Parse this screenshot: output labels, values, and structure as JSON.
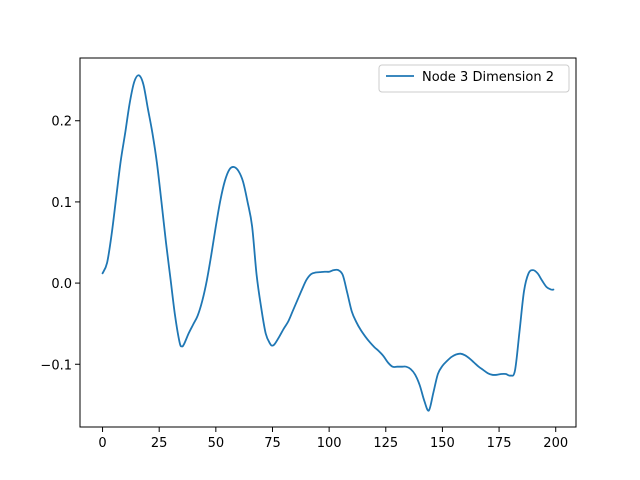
{
  "chart_data": {
    "type": "line",
    "title": "",
    "xlabel": "",
    "ylabel": "",
    "xlim": [
      -9.95,
      208.95
    ],
    "ylim": [
      -0.1773,
      0.2773
    ],
    "xticks": [
      0,
      25,
      50,
      75,
      100,
      125,
      150,
      175,
      200
    ],
    "xtick_labels": [
      "0",
      "25",
      "50",
      "75",
      "100",
      "125",
      "150",
      "175",
      "200"
    ],
    "yticks": [
      -0.1,
      0.0,
      0.1,
      0.2
    ],
    "ytick_labels": [
      "−0.1",
      "0.0",
      "0.1",
      "0.2"
    ],
    "grid": false,
    "legend_position": "top-right",
    "series": [
      {
        "name": "Node 3 Dimension 2",
        "color": "#1f77b4",
        "x": [
          0,
          2,
          4,
          6,
          8,
          10,
          12,
          14,
          16,
          18,
          20,
          22,
          24,
          26,
          28,
          30,
          32,
          34,
          35,
          36,
          38,
          40,
          42,
          44,
          46,
          48,
          50,
          52,
          54,
          56,
          58,
          60,
          62,
          64,
          66,
          68,
          70,
          72,
          74,
          75,
          76,
          78,
          80,
          82,
          84,
          86,
          88,
          90,
          92,
          94,
          96,
          98,
          100,
          102,
          104,
          106,
          108,
          110,
          112,
          114,
          116,
          118,
          120,
          122,
          124,
          126,
          128,
          130,
          132,
          134,
          136,
          138,
          140,
          142,
          144,
          146,
          148,
          150,
          152,
          154,
          156,
          158,
          160,
          162,
          164,
          166,
          168,
          170,
          172,
          174,
          176,
          178,
          180,
          182,
          184,
          186,
          188,
          190,
          192,
          194,
          196,
          198,
          199
        ],
        "y": [
          0.012,
          0.025,
          0.06,
          0.105,
          0.15,
          0.185,
          0.222,
          0.248,
          0.256,
          0.245,
          0.215,
          0.185,
          0.148,
          0.1,
          0.05,
          0.005,
          -0.04,
          -0.073,
          -0.078,
          -0.075,
          -0.062,
          -0.051,
          -0.04,
          -0.022,
          0.003,
          0.035,
          0.07,
          0.102,
          0.126,
          0.14,
          0.143,
          0.138,
          0.125,
          0.1,
          0.07,
          0.01,
          -0.03,
          -0.062,
          -0.075,
          -0.077,
          -0.075,
          -0.066,
          -0.056,
          -0.047,
          -0.034,
          -0.021,
          -0.008,
          0.004,
          0.011,
          0.013,
          0.0135,
          0.014,
          0.014,
          0.016,
          0.016,
          0.01,
          -0.012,
          -0.035,
          -0.048,
          -0.058,
          -0.066,
          -0.073,
          -0.079,
          -0.084,
          -0.09,
          -0.098,
          -0.103,
          -0.103,
          -0.103,
          -0.103,
          -0.106,
          -0.113,
          -0.126,
          -0.145,
          -0.157,
          -0.135,
          -0.112,
          -0.102,
          -0.096,
          -0.091,
          -0.088,
          -0.087,
          -0.089,
          -0.093,
          -0.098,
          -0.103,
          -0.107,
          -0.111,
          -0.113,
          -0.113,
          -0.112,
          -0.112,
          -0.114,
          -0.108,
          -0.06,
          -0.01,
          0.012,
          0.016,
          0.012,
          0.003,
          -0.005,
          -0.008,
          -0.008
        ]
      }
    ]
  }
}
